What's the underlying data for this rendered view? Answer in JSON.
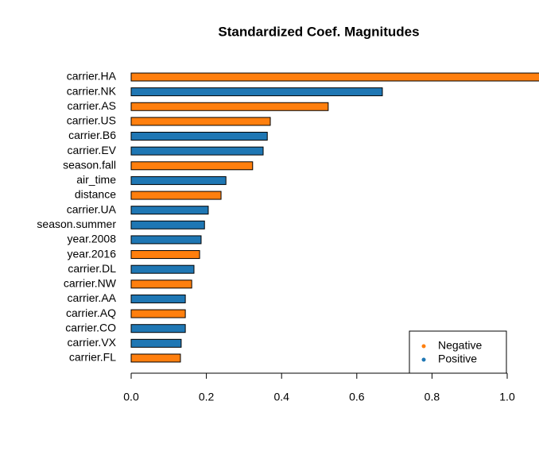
{
  "chart_data": {
    "type": "hbar",
    "title": "Standardized Coef. Magnitudes",
    "categories": [
      "carrier.HA",
      "carrier.NK",
      "carrier.AS",
      "carrier.US",
      "carrier.B6",
      "carrier.EV",
      "season.fall",
      "air_time",
      "distance",
      "carrier.UA",
      "season.summer",
      "year.2008",
      "year.2016",
      "carrier.DL",
      "carrier.NW",
      "carrier.AA",
      "carrier.AQ",
      "carrier.CO",
      "carrier.VX",
      "carrier.FL"
    ],
    "series": [
      {
        "name": "Negative",
        "color": "#ff7f0e",
        "values": [
          1.09,
          null,
          0.524,
          0.37,
          null,
          null,
          0.323,
          null,
          0.239,
          null,
          null,
          null,
          0.182,
          null,
          0.161,
          null,
          0.144,
          null,
          null,
          0.131
        ]
      },
      {
        "name": "Positive",
        "color": "#1f77b4",
        "values": [
          null,
          0.668,
          null,
          null,
          0.362,
          0.351,
          null,
          0.252,
          null,
          0.205,
          0.195,
          0.186,
          null,
          0.167,
          null,
          0.144,
          null,
          0.144,
          0.133,
          null
        ]
      }
    ],
    "xlim": [
      0,
      1
    ],
    "xticks": [
      {
        "value": 0,
        "label": "0.0"
      },
      {
        "value": 0.2,
        "label": "0.2"
      },
      {
        "value": 0.4,
        "label": "0.4"
      },
      {
        "value": 0.6,
        "label": "0.6"
      },
      {
        "value": 0.8,
        "label": "0.8"
      },
      {
        "value": 1,
        "label": "1.0"
      }
    ],
    "legend": "bottom-right"
  }
}
